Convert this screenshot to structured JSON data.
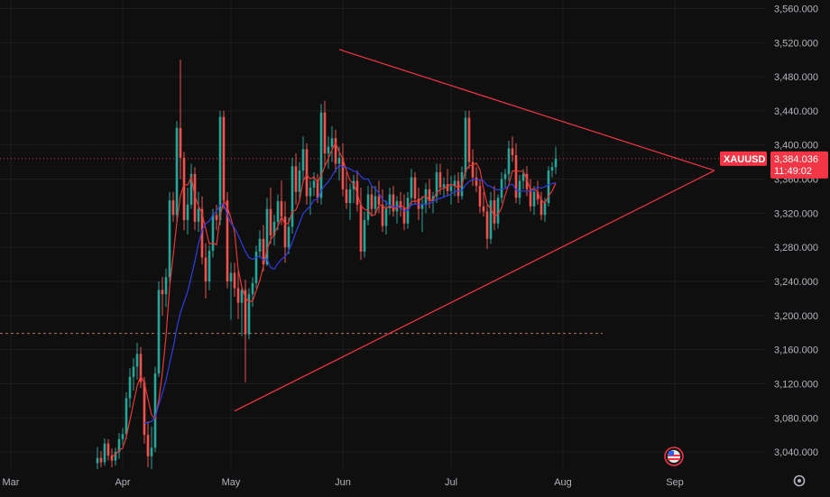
{
  "colors": {
    "background": "#0f0f0f",
    "grid": "#1e1e1e",
    "axis_text": "#b2b5be",
    "up": "#26a69a",
    "down": "#ef5350",
    "trendline": "#f23645",
    "ma_fast": "#e53935",
    "ma_slow": "#2f3fe0",
    "price_tag": "#f23645",
    "support_line": "#b2775a"
  },
  "chart_data": {
    "type": "candlestick",
    "symbol": "XAUUSD",
    "current_price": "3,384.036",
    "countdown": "11:49:02",
    "y_axis_labels": [
      "3,560.000",
      "3,520.000",
      "3,480.000",
      "3,440.000",
      "3,400.000",
      "3,360.000",
      "3,320.000",
      "3,280.000",
      "3,240.000",
      "3,200.000",
      "3,160.000",
      "3,120.000",
      "3,080.000",
      "3,040.000"
    ],
    "y_axis_values": [
      3560,
      3520,
      3480,
      3440,
      3400,
      3360,
      3320,
      3280,
      3240,
      3200,
      3160,
      3120,
      3080,
      3040
    ],
    "ylim": [
      3020,
      3570
    ],
    "x_axis_labels": [
      "Mar",
      "Apr",
      "May",
      "Jun",
      "Jul",
      "Aug",
      "Sep"
    ],
    "x_axis_days": [
      1,
      32,
      62,
      93,
      123,
      154,
      185
    ],
    "xlim": [
      -2,
      210
    ],
    "grid": true,
    "last_price": 3384.036,
    "horizontal_level": 3179,
    "triangle": {
      "upper": [
        [
          92,
          3512
        ],
        [
          196,
          3370
        ]
      ],
      "lower": [
        [
          63,
          3088
        ],
        [
          196,
          3370
        ]
      ]
    },
    "ohlc_note": "day index (0 = Mar 1), open, high, low, close",
    "candles": [
      [
        25,
        3027,
        3046,
        3020,
        3033
      ],
      [
        26,
        3033,
        3041,
        3022,
        3028
      ],
      [
        27,
        3028,
        3056,
        3024,
        3050
      ],
      [
        28,
        3050,
        3055,
        3030,
        3036
      ],
      [
        29,
        3036,
        3044,
        3022,
        3030
      ],
      [
        30,
        3030,
        3045,
        3024,
        3040
      ],
      [
        31,
        3040,
        3062,
        3032,
        3055
      ],
      [
        32,
        3055,
        3068,
        3048,
        3061
      ],
      [
        33,
        3061,
        3110,
        3055,
        3103
      ],
      [
        34,
        3103,
        3138,
        3092,
        3128
      ],
      [
        35,
        3128,
        3150,
        3112,
        3140
      ],
      [
        36,
        3140,
        3168,
        3125,
        3155
      ],
      [
        37,
        3155,
        3163,
        3115,
        3122
      ],
      [
        38,
        3122,
        3128,
        3050,
        3060
      ],
      [
        39,
        3060,
        3076,
        3022,
        3035
      ],
      [
        40,
        3035,
        3070,
        3020,
        3045
      ],
      [
        41,
        3045,
        3140,
        3040,
        3132
      ],
      [
        42,
        3132,
        3240,
        3128,
        3230
      ],
      [
        43,
        3230,
        3245,
        3200,
        3225
      ],
      [
        44,
        3225,
        3255,
        3210,
        3245
      ],
      [
        45,
        3245,
        3345,
        3238,
        3335
      ],
      [
        46,
        3335,
        3345,
        3310,
        3318
      ],
      [
        47,
        3318,
        3428,
        3310,
        3420
      ],
      [
        48,
        3420,
        3500,
        3360,
        3385
      ],
      [
        49,
        3385,
        3392,
        3300,
        3312
      ],
      [
        50,
        3312,
        3350,
        3295,
        3330
      ],
      [
        51,
        3330,
        3378,
        3325,
        3366
      ],
      [
        52,
        3366,
        3374,
        3300,
        3310
      ],
      [
        53,
        3310,
        3345,
        3298,
        3325
      ],
      [
        54,
        3325,
        3340,
        3260,
        3268
      ],
      [
        55,
        3268,
        3285,
        3220,
        3240
      ],
      [
        56,
        3240,
        3282,
        3230,
        3276
      ],
      [
        57,
        3276,
        3325,
        3268,
        3318
      ],
      [
        58,
        3318,
        3330,
        3300,
        3312
      ],
      [
        59,
        3312,
        3440,
        3306,
        3433
      ],
      [
        60,
        3433,
        3440,
        3325,
        3335
      ],
      [
        61,
        3335,
        3345,
        3232,
        3240
      ],
      [
        62,
        3240,
        3262,
        3195,
        3250
      ],
      [
        63,
        3250,
        3262,
        3222,
        3232
      ],
      [
        64,
        3232,
        3252,
        3196,
        3215
      ],
      [
        65,
        3215,
        3235,
        3176,
        3230
      ],
      [
        66,
        3230,
        3242,
        3122,
        3178
      ],
      [
        67,
        3178,
        3232,
        3172,
        3225
      ],
      [
        68,
        3225,
        3245,
        3210,
        3238
      ],
      [
        69,
        3238,
        3282,
        3232,
        3275
      ],
      [
        70,
        3275,
        3300,
        3268,
        3290
      ],
      [
        71,
        3290,
        3306,
        3252,
        3260
      ],
      [
        72,
        3260,
        3338,
        3258,
        3325
      ],
      [
        73,
        3325,
        3350,
        3284,
        3294
      ],
      [
        74,
        3294,
        3318,
        3282,
        3310
      ],
      [
        75,
        3310,
        3342,
        3300,
        3334
      ],
      [
        76,
        3334,
        3358,
        3306,
        3316
      ],
      [
        77,
        3316,
        3334,
        3262,
        3280
      ],
      [
        78,
        3280,
        3315,
        3272,
        3304
      ],
      [
        79,
        3304,
        3385,
        3296,
        3375
      ],
      [
        80,
        3375,
        3390,
        3330,
        3345
      ],
      [
        81,
        3345,
        3380,
        3335,
        3370
      ],
      [
        82,
        3370,
        3410,
        3355,
        3395
      ],
      [
        83,
        3395,
        3402,
        3330,
        3340
      ],
      [
        84,
        3340,
        3358,
        3318,
        3350
      ],
      [
        85,
        3350,
        3368,
        3340,
        3358
      ],
      [
        86,
        3358,
        3366,
        3332,
        3338
      ],
      [
        87,
        3338,
        3448,
        3330,
        3438
      ],
      [
        88,
        3438,
        3452,
        3375,
        3390
      ],
      [
        89,
        3390,
        3410,
        3372,
        3398
      ],
      [
        90,
        3398,
        3422,
        3380,
        3408
      ],
      [
        91,
        3408,
        3418,
        3368,
        3378
      ],
      [
        92,
        3378,
        3398,
        3358,
        3385
      ],
      [
        93,
        3385,
        3402,
        3340,
        3348
      ],
      [
        94,
        3348,
        3368,
        3325,
        3332
      ],
      [
        95,
        3332,
        3355,
        3312,
        3348
      ],
      [
        96,
        3348,
        3365,
        3332,
        3358
      ],
      [
        97,
        3358,
        3370,
        3322,
        3330
      ],
      [
        98,
        3330,
        3350,
        3265,
        3275
      ],
      [
        99,
        3275,
        3322,
        3268,
        3312
      ],
      [
        100,
        3312,
        3352,
        3306,
        3342
      ],
      [
        101,
        3342,
        3352,
        3318,
        3325
      ],
      [
        102,
        3325,
        3352,
        3318,
        3340
      ],
      [
        103,
        3340,
        3358,
        3320,
        3330
      ],
      [
        104,
        3330,
        3348,
        3298,
        3305
      ],
      [
        105,
        3305,
        3335,
        3295,
        3326
      ],
      [
        106,
        3326,
        3350,
        3318,
        3342
      ],
      [
        107,
        3342,
        3352,
        3316,
        3322
      ],
      [
        108,
        3322,
        3340,
        3308,
        3334
      ],
      [
        109,
        3334,
        3345,
        3316,
        3326
      ],
      [
        110,
        3326,
        3342,
        3300,
        3308
      ],
      [
        111,
        3308,
        3345,
        3302,
        3338
      ],
      [
        112,
        3338,
        3372,
        3330,
        3362
      ],
      [
        113,
        3362,
        3368,
        3330,
        3337
      ],
      [
        114,
        3337,
        3350,
        3312,
        3325
      ],
      [
        115,
        3325,
        3340,
        3298,
        3330
      ],
      [
        116,
        3330,
        3355,
        3320,
        3348
      ],
      [
        117,
        3348,
        3360,
        3326,
        3334
      ],
      [
        118,
        3334,
        3345,
        3320,
        3340
      ],
      [
        119,
        3340,
        3378,
        3332,
        3368
      ],
      [
        120,
        3368,
        3378,
        3342,
        3350
      ],
      [
        121,
        3350,
        3362,
        3338,
        3354
      ],
      [
        122,
        3354,
        3372,
        3340,
        3346
      ],
      [
        123,
        3346,
        3364,
        3330,
        3352
      ],
      [
        124,
        3352,
        3365,
        3340,
        3358
      ],
      [
        125,
        3358,
        3368,
        3332,
        3340
      ],
      [
        126,
        3340,
        3375,
        3336,
        3368
      ],
      [
        127,
        3368,
        3440,
        3360,
        3432
      ],
      [
        128,
        3432,
        3440,
        3372,
        3380
      ],
      [
        129,
        3380,
        3395,
        3352,
        3362
      ],
      [
        130,
        3362,
        3374,
        3345,
        3352
      ],
      [
        131,
        3352,
        3360,
        3320,
        3328
      ],
      [
        132,
        3328,
        3345,
        3316,
        3322
      ],
      [
        133,
        3322,
        3330,
        3278,
        3290
      ],
      [
        134,
        3290,
        3345,
        3284,
        3335
      ],
      [
        135,
        3335,
        3352,
        3300,
        3308
      ],
      [
        136,
        3308,
        3342,
        3302,
        3338
      ],
      [
        137,
        3338,
        3368,
        3332,
        3360
      ],
      [
        138,
        3360,
        3372,
        3350,
        3366
      ],
      [
        139,
        3366,
        3405,
        3358,
        3396
      ],
      [
        140,
        3396,
        3410,
        3380,
        3388
      ],
      [
        141,
        3388,
        3402,
        3332,
        3338
      ],
      [
        142,
        3338,
        3365,
        3330,
        3358
      ],
      [
        143,
        3358,
        3372,
        3348,
        3366
      ],
      [
        144,
        3366,
        3375,
        3340,
        3348
      ],
      [
        145,
        3348,
        3360,
        3322,
        3328
      ],
      [
        146,
        3328,
        3352,
        3318,
        3345
      ],
      [
        147,
        3345,
        3358,
        3330,
        3336
      ],
      [
        148,
        3336,
        3345,
        3312,
        3318
      ],
      [
        149,
        3318,
        3338,
        3310,
        3332
      ],
      [
        150,
        3332,
        3375,
        3328,
        3370
      ],
      [
        151,
        3370,
        3380,
        3362,
        3374
      ],
      [
        152,
        3374,
        3398,
        3366,
        3384
      ]
    ]
  }
}
